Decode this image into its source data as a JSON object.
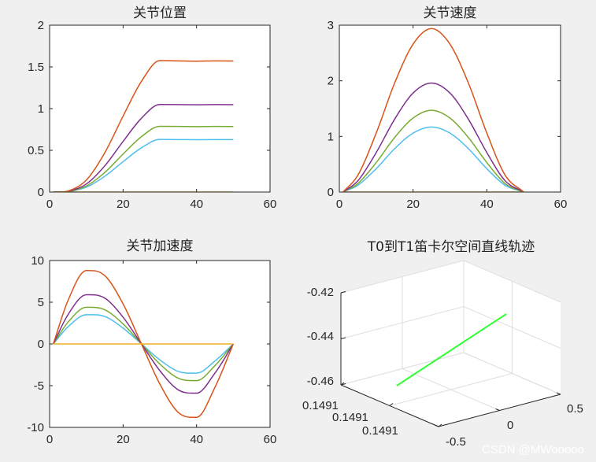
{
  "figure": {
    "background": "#f0f0f0",
    "axes_bg": "#ffffff",
    "axis_color": "#262626",
    "grid_color": "#dfdfdf"
  },
  "watermark": "CSDN @MWooooo",
  "chart_data": [
    {
      "type": "line",
      "title": "关节位置",
      "xlim": [
        0,
        60
      ],
      "ylim": [
        0,
        2
      ],
      "xticks": [
        0,
        20,
        40,
        60
      ],
      "yticks": [
        0,
        0.5,
        1,
        1.5,
        2
      ],
      "xticklabels": [
        "0",
        "20",
        "40",
        "60"
      ],
      "yticklabels": [
        "0",
        "0.5",
        "1",
        "1.5",
        "2"
      ],
      "x": [
        1,
        5,
        10,
        15,
        20,
        25,
        30,
        35,
        40,
        45,
        50
      ],
      "series": [
        {
          "color": "#4dbeee",
          "values": [
            0,
            0.005,
            0.058,
            0.188,
            0.364,
            0.53,
            0.631,
            0.629,
            0.627,
            0.629,
            0.628
          ]
        },
        {
          "color": "#77ac30",
          "values": [
            0,
            0.006,
            0.072,
            0.234,
            0.455,
            0.664,
            0.788,
            0.786,
            0.784,
            0.786,
            0.785
          ]
        },
        {
          "color": "#7e2f8e",
          "values": [
            0,
            0.008,
            0.096,
            0.313,
            0.607,
            0.885,
            1.05,
            1.048,
            1.046,
            1.048,
            1.047
          ]
        },
        {
          "color": "#d95319",
          "values": [
            0,
            0.012,
            0.144,
            0.469,
            0.91,
            1.327,
            1.575,
            1.572,
            1.569,
            1.572,
            1.571
          ]
        },
        {
          "color": "#edb120",
          "values": [
            0,
            0,
            0,
            0,
            0,
            0,
            0,
            0,
            0,
            0,
            0
          ]
        }
      ],
      "grid": false
    },
    {
      "type": "line",
      "title": "关节速度",
      "xlim": [
        0,
        60
      ],
      "ylim": [
        0,
        3
      ],
      "xticks": [
        0,
        20,
        40,
        60
      ],
      "yticks": [
        0,
        1,
        2,
        3
      ],
      "xticklabels": [
        "0",
        "20",
        "40",
        "60"
      ],
      "yticklabels": [
        "0",
        "1",
        "2",
        "3"
      ],
      "x": [
        1,
        5,
        10,
        15,
        20,
        25,
        30,
        35,
        40,
        45,
        50
      ],
      "series": [
        {
          "color": "#4dbeee",
          "values": [
            0,
            0.12,
            0.42,
            0.78,
            1.06,
            1.17,
            1.06,
            0.78,
            0.42,
            0.12,
            0
          ]
        },
        {
          "color": "#77ac30",
          "values": [
            0,
            0.15,
            0.53,
            0.98,
            1.33,
            1.47,
            1.33,
            0.98,
            0.53,
            0.15,
            0
          ]
        },
        {
          "color": "#7e2f8e",
          "values": [
            0,
            0.2,
            0.71,
            1.31,
            1.78,
            1.96,
            1.78,
            1.31,
            0.71,
            0.2,
            0
          ]
        },
        {
          "color": "#d95319",
          "values": [
            0,
            0.3,
            1.06,
            1.96,
            2.66,
            2.94,
            2.66,
            1.96,
            1.06,
            0.3,
            0
          ]
        },
        {
          "color": "#edb120",
          "values": [
            0,
            0,
            0,
            0,
            0,
            0,
            0,
            0,
            0,
            0,
            0
          ]
        }
      ],
      "grid": false
    },
    {
      "type": "line",
      "title": "关节加速度",
      "xlim": [
        0,
        60
      ],
      "ylim": [
        -10,
        10
      ],
      "xticks": [
        0,
        20,
        40,
        60
      ],
      "yticks": [
        -10,
        -5,
        0,
        5,
        10
      ],
      "xticklabels": [
        "0",
        "20",
        "40",
        "60"
      ],
      "yticklabels": [
        "-10",
        "-5",
        "0",
        "5",
        "10"
      ],
      "x": [
        1,
        5,
        10,
        15,
        20,
        25,
        30,
        35,
        40,
        45,
        50
      ],
      "series": [
        {
          "color": "#4dbeee",
          "values": [
            0,
            2.05,
            3.5,
            3.3,
            1.9,
            0,
            -1.9,
            -3.3,
            -3.5,
            -2.05,
            0
          ]
        },
        {
          "color": "#77ac30",
          "values": [
            0,
            2.6,
            4.4,
            4.1,
            2.4,
            0,
            -2.4,
            -4.1,
            -4.4,
            -2.6,
            0
          ]
        },
        {
          "color": "#7e2f8e",
          "values": [
            0,
            3.5,
            5.9,
            5.5,
            3.2,
            0,
            -3.2,
            -5.5,
            -5.9,
            -3.5,
            0
          ]
        },
        {
          "color": "#d95319",
          "values": [
            0,
            5.2,
            8.8,
            8.2,
            4.8,
            0,
            -4.8,
            -8.2,
            -8.8,
            -5.2,
            0
          ]
        },
        {
          "color": "#edb120",
          "values": [
            0,
            0,
            0,
            0,
            0,
            0,
            0,
            0,
            0,
            0,
            0
          ]
        }
      ],
      "grid": false
    },
    {
      "type": "line3d",
      "title": "T0到T1笛卡尔空间直线轨迹",
      "zticklabels": [
        "-0.42",
        "-0.44",
        "-0.46"
      ],
      "xticklabels": [
        "0.1491",
        "0.1491",
        "0.1491"
      ],
      "yticklabels": [
        "-0.5",
        "0",
        "0.5"
      ],
      "line_color": "#33ff33",
      "grid": true
    }
  ]
}
